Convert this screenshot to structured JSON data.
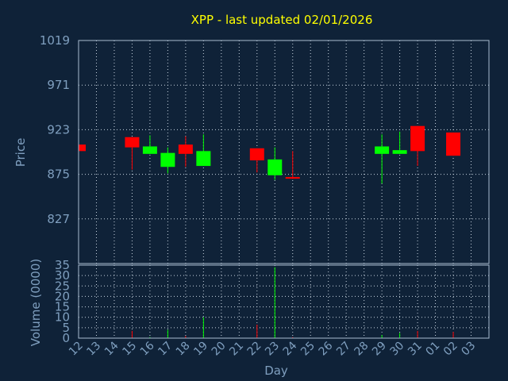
{
  "chart_data": [
    {
      "type": "candlestick",
      "title": "XPP - last updated 02/01/2026",
      "ylabel": "Price",
      "ylim": [
        779,
        1019
      ],
      "yticks": [
        1019,
        971,
        923,
        875,
        827
      ],
      "grid": true,
      "colors": {
        "up": "#00ff00",
        "down": "#ff0000",
        "background": "#0f2238",
        "text": "#7f9fbf",
        "title": "#ffff00"
      },
      "days": [
        "12",
        "13",
        "14",
        "15",
        "16",
        "17",
        "18",
        "19",
        "20",
        "21",
        "22",
        "23",
        "24",
        "25",
        "26",
        "27",
        "28",
        "29",
        "30",
        "31",
        "01",
        "02",
        "03"
      ],
      "candles": [
        {
          "day": "12",
          "open": 907,
          "close": 900,
          "high": 907,
          "low": 900
        },
        {
          "day": "15",
          "open": 915,
          "close": 904,
          "high": 915,
          "low": 880
        },
        {
          "day": "16",
          "open": 897,
          "close": 905,
          "high": 917,
          "low": 897
        },
        {
          "day": "17",
          "open": 883,
          "close": 898,
          "high": 904,
          "low": 876
        },
        {
          "day": "18",
          "open": 907,
          "close": 897,
          "high": 916,
          "low": 883
        },
        {
          "day": "19",
          "open": 884,
          "close": 900,
          "high": 918,
          "low": 884
        },
        {
          "day": "22",
          "open": 903,
          "close": 890,
          "high": 903,
          "low": 877
        },
        {
          "day": "23",
          "open": 874,
          "close": 891,
          "high": 904,
          "low": 869
        },
        {
          "day": "24",
          "open": 872,
          "close": 871,
          "high": 900,
          "low": 870
        },
        {
          "day": "29",
          "open": 897,
          "close": 905,
          "high": 918,
          "low": 865
        },
        {
          "day": "30",
          "open": 897,
          "close": 901,
          "high": 921,
          "low": 897
        },
        {
          "day": "31",
          "open": 927,
          "close": 900,
          "high": 927,
          "low": 884
        },
        {
          "day": "02",
          "open": 920,
          "close": 895,
          "high": 920,
          "low": 895
        }
      ]
    },
    {
      "type": "bar",
      "xlabel": "Day",
      "ylabel": "Volume (0000)",
      "ylim": [
        0,
        35
      ],
      "yticks": [
        35,
        30,
        25,
        20,
        15,
        10,
        5,
        0
      ],
      "grid": true,
      "categories": [
        "12",
        "13",
        "14",
        "15",
        "16",
        "17",
        "18",
        "19",
        "20",
        "21",
        "22",
        "23",
        "24",
        "25",
        "26",
        "27",
        "28",
        "29",
        "30",
        "31",
        "01",
        "02",
        "03"
      ],
      "values": [
        0.3,
        0,
        0,
        3.5,
        0.5,
        4,
        1,
        10,
        0,
        0,
        6.5,
        34,
        0.5,
        0,
        0,
        0,
        0,
        1.5,
        2.5,
        3.5,
        0,
        3,
        0
      ],
      "colors_by_index": [
        "down",
        "none",
        "none",
        "down",
        "up",
        "up",
        "down",
        "up",
        "none",
        "none",
        "down",
        "up",
        "down",
        "none",
        "none",
        "none",
        "none",
        "up",
        "up",
        "down",
        "none",
        "down",
        "none"
      ]
    }
  ]
}
